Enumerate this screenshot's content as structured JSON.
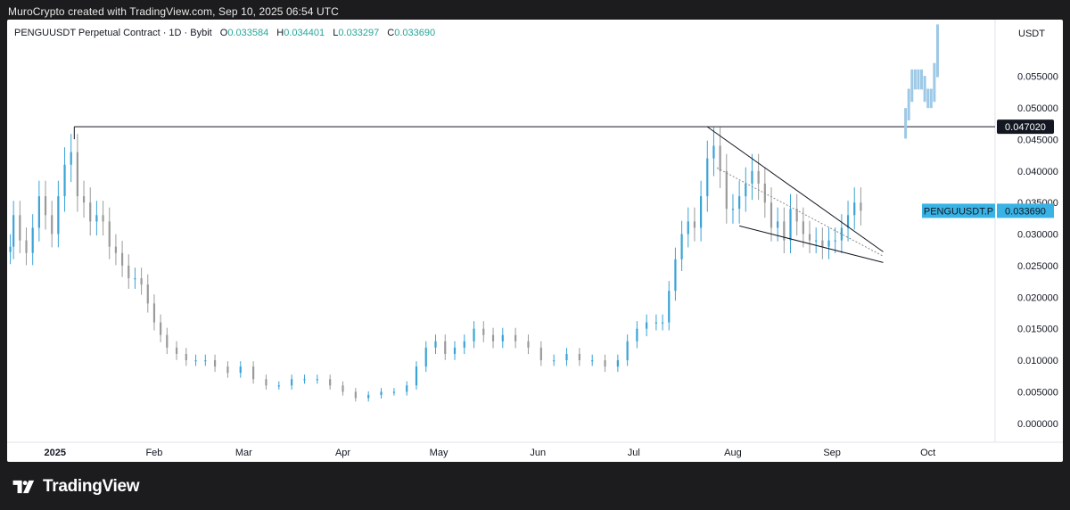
{
  "caption": "MuroCrypto created with TradingView.com, Sep 10, 2025 06:54 UTC",
  "legend": {
    "symbol_line": "PENGUUSDT Perpetual Contract · 1D · Bybit",
    "open_label": "O",
    "open": "0.033584",
    "high_label": "H",
    "high": "0.034401",
    "low_label": "L",
    "low": "0.033297",
    "close_label": "C",
    "close": "0.033690"
  },
  "footer": {
    "brand": "TradingView",
    "logo_icon": "tradingview-logo-icon"
  },
  "colors": {
    "up": "#3aa3d6",
    "down": "#9a9a9a",
    "projection": "#9ec9e6",
    "pattern_line": "#131722",
    "price_badge": "#39b3e5",
    "level_badge": "#131722"
  },
  "chart_data": {
    "type": "candlestick",
    "symbol": "PENGUUSDT Perpetual Contract",
    "interval": "1D",
    "exchange": "Bybit",
    "currency_label": "USDT",
    "ylim": [
      -0.003,
      0.064
    ],
    "y_ticks": [
      "0.055000",
      "0.050000",
      "0.045000",
      "0.040000",
      "0.035000",
      "0.030000",
      "0.025000",
      "0.020000",
      "0.015000",
      "0.010000",
      "0.005000",
      "0.000000"
    ],
    "x_ticks": [
      {
        "label": "2025",
        "date": "2025-01-01",
        "bold": true
      },
      {
        "label": "Feb",
        "date": "2025-02-01"
      },
      {
        "label": "Mar",
        "date": "2025-03-01"
      },
      {
        "label": "Apr",
        "date": "2025-04-01"
      },
      {
        "label": "May",
        "date": "2025-05-01"
      },
      {
        "label": "Jun",
        "date": "2025-06-01"
      },
      {
        "label": "Jul",
        "date": "2025-07-01"
      },
      {
        "label": "Aug",
        "date": "2025-08-01"
      },
      {
        "label": "Sep",
        "date": "2025-09-01"
      },
      {
        "label": "Oct",
        "date": "2025-10-01"
      }
    ],
    "x_range": [
      "2024-12-17",
      "2025-10-22"
    ],
    "close_series": [
      [
        "2024-12-18",
        0.028
      ],
      [
        "2024-12-19",
        0.033
      ],
      [
        "2024-12-21",
        0.029
      ],
      [
        "2024-12-23",
        0.027
      ],
      [
        "2024-12-25",
        0.031
      ],
      [
        "2024-12-27",
        0.036
      ],
      [
        "2024-12-29",
        0.033
      ],
      [
        "2024-12-31",
        0.03
      ],
      [
        "2025-01-02",
        0.036
      ],
      [
        "2025-01-04",
        0.041
      ],
      [
        "2025-01-06",
        0.043
      ],
      [
        "2025-01-08",
        0.036
      ],
      [
        "2025-01-10",
        0.035
      ],
      [
        "2025-01-12",
        0.032
      ],
      [
        "2025-01-14",
        0.033
      ],
      [
        "2025-01-16",
        0.032
      ],
      [
        "2025-01-18",
        0.028
      ],
      [
        "2025-01-20",
        0.027
      ],
      [
        "2025-01-22",
        0.025
      ],
      [
        "2025-01-24",
        0.023
      ],
      [
        "2025-01-26",
        0.023
      ],
      [
        "2025-01-28",
        0.022
      ],
      [
        "2025-01-30",
        0.019
      ],
      [
        "2025-02-01",
        0.016
      ],
      [
        "2025-02-03",
        0.014
      ],
      [
        "2025-02-05",
        0.012
      ],
      [
        "2025-02-08",
        0.011
      ],
      [
        "2025-02-11",
        0.01
      ],
      [
        "2025-02-14",
        0.01
      ],
      [
        "2025-02-17",
        0.01
      ],
      [
        "2025-02-20",
        0.009
      ],
      [
        "2025-02-24",
        0.008
      ],
      [
        "2025-02-28",
        0.009
      ],
      [
        "2025-03-04",
        0.007
      ],
      [
        "2025-03-08",
        0.006
      ],
      [
        "2025-03-12",
        0.006
      ],
      [
        "2025-03-16",
        0.007
      ],
      [
        "2025-03-20",
        0.007
      ],
      [
        "2025-03-24",
        0.007
      ],
      [
        "2025-03-28",
        0.006
      ],
      [
        "2025-04-01",
        0.005
      ],
      [
        "2025-04-05",
        0.004
      ],
      [
        "2025-04-09",
        0.0045
      ],
      [
        "2025-04-13",
        0.005
      ],
      [
        "2025-04-17",
        0.005
      ],
      [
        "2025-04-21",
        0.006
      ],
      [
        "2025-04-24",
        0.009
      ],
      [
        "2025-04-27",
        0.012
      ],
      [
        "2025-04-30",
        0.013
      ],
      [
        "2025-05-03",
        0.011
      ],
      [
        "2025-05-06",
        0.012
      ],
      [
        "2025-05-09",
        0.013
      ],
      [
        "2025-05-12",
        0.015
      ],
      [
        "2025-05-15",
        0.014
      ],
      [
        "2025-05-18",
        0.013
      ],
      [
        "2025-05-21",
        0.014
      ],
      [
        "2025-05-25",
        0.013
      ],
      [
        "2025-05-29",
        0.012
      ],
      [
        "2025-06-02",
        0.01
      ],
      [
        "2025-06-06",
        0.01
      ],
      [
        "2025-06-10",
        0.011
      ],
      [
        "2025-06-14",
        0.01
      ],
      [
        "2025-06-18",
        0.01
      ],
      [
        "2025-06-22",
        0.009
      ],
      [
        "2025-06-26",
        0.01
      ],
      [
        "2025-06-29",
        0.013
      ],
      [
        "2025-07-02",
        0.015
      ],
      [
        "2025-07-05",
        0.016
      ],
      [
        "2025-07-08",
        0.016
      ],
      [
        "2025-07-10",
        0.016
      ],
      [
        "2025-07-12",
        0.021
      ],
      [
        "2025-07-14",
        0.026
      ],
      [
        "2025-07-16",
        0.03
      ],
      [
        "2025-07-18",
        0.032
      ],
      [
        "2025-07-20",
        0.031
      ],
      [
        "2025-07-22",
        0.036
      ],
      [
        "2025-07-24",
        0.042
      ],
      [
        "2025-07-26",
        0.044
      ],
      [
        "2025-07-28",
        0.04
      ],
      [
        "2025-07-30",
        0.034
      ],
      [
        "2025-08-01",
        0.034
      ],
      [
        "2025-08-03",
        0.036
      ],
      [
        "2025-08-05",
        0.038
      ],
      [
        "2025-08-07",
        0.04
      ],
      [
        "2025-08-09",
        0.038
      ],
      [
        "2025-08-11",
        0.035
      ],
      [
        "2025-08-13",
        0.031
      ],
      [
        "2025-08-15",
        0.032
      ],
      [
        "2025-08-17",
        0.029
      ],
      [
        "2025-08-19",
        0.034
      ],
      [
        "2025-08-21",
        0.032
      ],
      [
        "2025-08-23",
        0.03
      ],
      [
        "2025-08-25",
        0.029
      ],
      [
        "2025-08-27",
        0.029
      ],
      [
        "2025-08-29",
        0.028
      ],
      [
        "2025-08-31",
        0.029
      ],
      [
        "2025-09-02",
        0.029
      ],
      [
        "2025-09-04",
        0.031
      ],
      [
        "2025-09-06",
        0.033
      ],
      [
        "2025-09-08",
        0.035
      ],
      [
        "2025-09-10",
        0.03369
      ]
    ],
    "projection_series": [
      [
        "2025-09-24",
        0.049
      ],
      [
        "2025-09-25",
        0.052
      ],
      [
        "2025-09-26",
        0.055
      ],
      [
        "2025-09-27",
        0.054
      ],
      [
        "2025-09-28",
        0.055
      ],
      [
        "2025-09-29",
        0.054
      ],
      [
        "2025-09-30",
        0.052
      ],
      [
        "2025-10-01",
        0.051
      ],
      [
        "2025-10-02",
        0.052
      ],
      [
        "2025-10-03",
        0.056
      ],
      [
        "2025-10-04",
        0.062
      ]
    ],
    "horizontal_level": {
      "value": 0.04702,
      "label": "0.047020",
      "from": "2025-01-07"
    },
    "price_label": {
      "symbol": "PENGUUSDT.P",
      "value": "0.033690"
    },
    "falling_wedge": {
      "upper": [
        [
          "2025-07-24",
          0.047
        ],
        [
          "2025-09-17",
          0.0272
        ]
      ],
      "lower": [
        [
          "2025-08-03",
          0.0313
        ],
        [
          "2025-09-17",
          0.0255
        ]
      ],
      "midline": [
        [
          "2025-07-27",
          0.0405
        ],
        [
          "2025-09-17",
          0.0265
        ]
      ]
    }
  }
}
